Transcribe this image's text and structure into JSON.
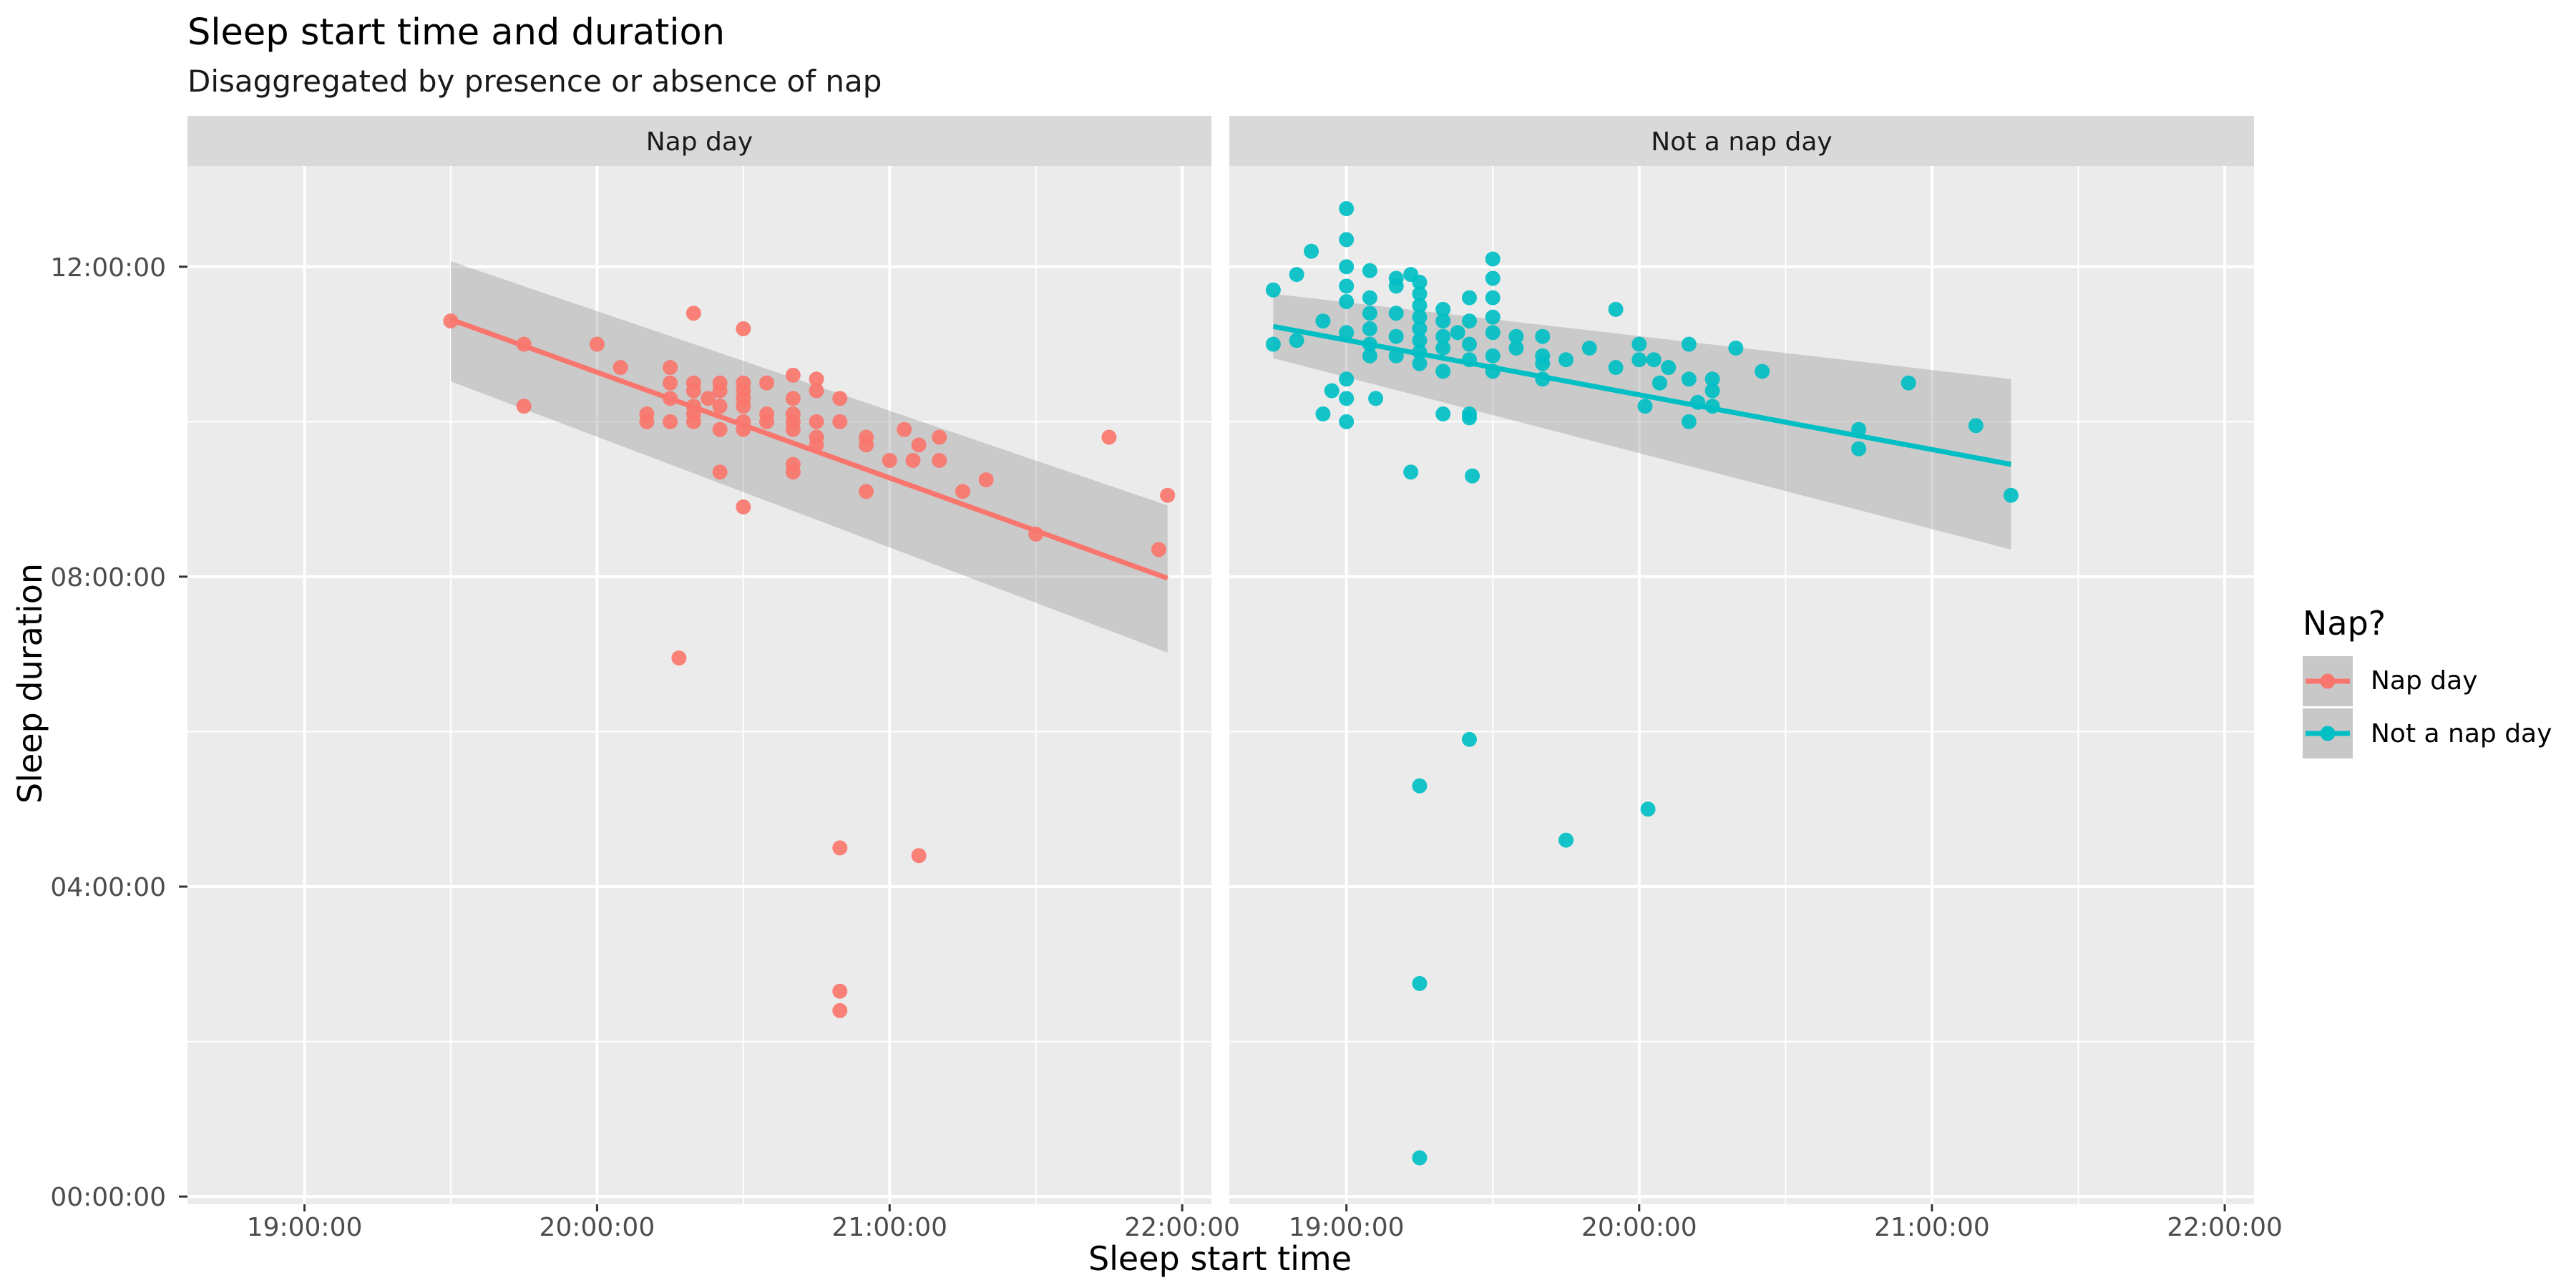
{
  "chart_data": {
    "type": "scatter",
    "title": "Sleep start time and duration",
    "subtitle": "Disaggregated by presence or absence of nap",
    "xlabel": "Sleep start time",
    "ylabel": "Sleep duration",
    "x_ticks": [
      "19:00:00",
      "20:00:00",
      "21:00:00",
      "22:00:00"
    ],
    "y_ticks": [
      "00:00:00",
      "04:00:00",
      "08:00:00",
      "12:00:00"
    ],
    "xlim_hours": [
      18.6,
      22.1
    ],
    "ylim_hours": [
      -0.1,
      13.3
    ],
    "grid": true,
    "legend": {
      "title": "Nap?",
      "position": "right",
      "items": [
        {
          "label": "Nap day",
          "color": "#F8766D"
        },
        {
          "label": "Not a nap day",
          "color": "#00BFC4"
        }
      ]
    },
    "panels": [
      {
        "strip": "Nap day",
        "color": "#F8766D",
        "fit": {
          "x": [
            19.5,
            21.95
          ],
          "y": [
            11.32,
            7.98
          ],
          "ci_lower": [
            10.52,
            7.02
          ],
          "ci_upper": [
            12.07,
            8.92
          ]
        },
        "points": [
          [
            19.5,
            11.3
          ],
          [
            19.75,
            11.0
          ],
          [
            19.75,
            10.2
          ],
          [
            20.0,
            11.0
          ],
          [
            20.08,
            10.7
          ],
          [
            20.17,
            10.1
          ],
          [
            20.17,
            10.0
          ],
          [
            20.25,
            10.7
          ],
          [
            20.25,
            10.5
          ],
          [
            20.25,
            10.3
          ],
          [
            20.25,
            10.0
          ],
          [
            20.28,
            6.95
          ],
          [
            20.33,
            11.4
          ],
          [
            20.33,
            10.5
          ],
          [
            20.33,
            10.4
          ],
          [
            20.33,
            10.2
          ],
          [
            20.33,
            10.1
          ],
          [
            20.33,
            10.0
          ],
          [
            20.38,
            10.3
          ],
          [
            20.42,
            10.5
          ],
          [
            20.42,
            10.4
          ],
          [
            20.42,
            10.2
          ],
          [
            20.42,
            9.9
          ],
          [
            20.42,
            9.35
          ],
          [
            20.5,
            11.2
          ],
          [
            20.5,
            10.5
          ],
          [
            20.5,
            10.4
          ],
          [
            20.5,
            10.3
          ],
          [
            20.5,
            10.2
          ],
          [
            20.5,
            10.0
          ],
          [
            20.5,
            9.9
          ],
          [
            20.5,
            8.9
          ],
          [
            20.58,
            10.5
          ],
          [
            20.58,
            10.1
          ],
          [
            20.58,
            10.0
          ],
          [
            20.67,
            10.6
          ],
          [
            20.67,
            10.3
          ],
          [
            20.67,
            10.1
          ],
          [
            20.67,
            10.0
          ],
          [
            20.67,
            9.9
          ],
          [
            20.67,
            9.45
          ],
          [
            20.67,
            9.35
          ],
          [
            20.75,
            10.55
          ],
          [
            20.75,
            10.4
          ],
          [
            20.75,
            10.0
          ],
          [
            20.75,
            9.8
          ],
          [
            20.75,
            9.7
          ],
          [
            20.83,
            10.3
          ],
          [
            20.83,
            10.0
          ],
          [
            20.83,
            4.5
          ],
          [
            20.83,
            2.65
          ],
          [
            20.83,
            2.4
          ],
          [
            20.92,
            9.8
          ],
          [
            20.92,
            9.7
          ],
          [
            20.92,
            9.1
          ],
          [
            21.0,
            9.5
          ],
          [
            21.05,
            9.9
          ],
          [
            21.08,
            9.5
          ],
          [
            21.1,
            9.7
          ],
          [
            21.1,
            4.4
          ],
          [
            21.17,
            9.8
          ],
          [
            21.17,
            9.5
          ],
          [
            21.25,
            9.1
          ],
          [
            21.33,
            9.25
          ],
          [
            21.5,
            8.55
          ],
          [
            21.75,
            9.8
          ],
          [
            21.92,
            8.35
          ],
          [
            21.95,
            9.05
          ]
        ]
      },
      {
        "strip": "Not a nap day",
        "color": "#00BFC4",
        "fit": {
          "x": [
            18.75,
            21.27
          ],
          "y": [
            11.23,
            9.45
          ],
          "ci_lower": [
            10.82,
            8.35
          ],
          "ci_upper": [
            11.65,
            10.55
          ]
        },
        "points": [
          [
            18.75,
            11.7
          ],
          [
            18.75,
            11.0
          ],
          [
            18.83,
            11.9
          ],
          [
            18.83,
            11.05
          ],
          [
            18.88,
            12.2
          ],
          [
            18.92,
            11.3
          ],
          [
            18.92,
            10.1
          ],
          [
            18.95,
            10.4
          ],
          [
            19.0,
            12.75
          ],
          [
            19.0,
            12.35
          ],
          [
            19.0,
            12.0
          ],
          [
            19.0,
            11.75
          ],
          [
            19.0,
            11.55
          ],
          [
            19.0,
            11.15
          ],
          [
            19.0,
            10.55
          ],
          [
            19.0,
            10.3
          ],
          [
            19.0,
            10.0
          ],
          [
            19.08,
            11.95
          ],
          [
            19.08,
            11.6
          ],
          [
            19.08,
            11.4
          ],
          [
            19.08,
            11.2
          ],
          [
            19.08,
            11.0
          ],
          [
            19.08,
            10.85
          ],
          [
            19.1,
            10.3
          ],
          [
            19.17,
            11.85
          ],
          [
            19.17,
            11.75
          ],
          [
            19.17,
            11.4
          ],
          [
            19.17,
            11.1
          ],
          [
            19.17,
            10.85
          ],
          [
            19.22,
            11.9
          ],
          [
            19.22,
            9.35
          ],
          [
            19.25,
            11.8
          ],
          [
            19.25,
            11.65
          ],
          [
            19.25,
            11.5
          ],
          [
            19.25,
            11.35
          ],
          [
            19.25,
            11.2
          ],
          [
            19.25,
            11.05
          ],
          [
            19.25,
            10.9
          ],
          [
            19.25,
            10.75
          ],
          [
            19.25,
            5.3
          ],
          [
            19.25,
            2.75
          ],
          [
            19.25,
            0.5
          ],
          [
            19.33,
            11.45
          ],
          [
            19.33,
            11.3
          ],
          [
            19.33,
            11.1
          ],
          [
            19.33,
            10.95
          ],
          [
            19.33,
            10.1
          ],
          [
            19.33,
            10.65
          ],
          [
            19.38,
            11.15
          ],
          [
            19.42,
            11.6
          ],
          [
            19.42,
            11.3
          ],
          [
            19.42,
            11.0
          ],
          [
            19.42,
            10.8
          ],
          [
            19.42,
            10.1
          ],
          [
            19.42,
            10.05
          ],
          [
            19.43,
            9.3
          ],
          [
            19.42,
            5.9
          ],
          [
            19.5,
            12.1
          ],
          [
            19.5,
            11.85
          ],
          [
            19.5,
            11.6
          ],
          [
            19.5,
            11.35
          ],
          [
            19.5,
            11.15
          ],
          [
            19.5,
            10.85
          ],
          [
            19.5,
            10.65
          ],
          [
            19.58,
            11.1
          ],
          [
            19.58,
            10.95
          ],
          [
            19.67,
            11.1
          ],
          [
            19.67,
            10.85
          ],
          [
            19.67,
            10.75
          ],
          [
            19.67,
            10.55
          ],
          [
            19.75,
            10.8
          ],
          [
            19.75,
            4.6
          ],
          [
            19.83,
            10.95
          ],
          [
            19.92,
            11.45
          ],
          [
            19.92,
            10.7
          ],
          [
            20.0,
            11.0
          ],
          [
            20.0,
            10.8
          ],
          [
            20.02,
            10.2
          ],
          [
            20.03,
            5.0
          ],
          [
            20.05,
            10.8
          ],
          [
            20.07,
            10.5
          ],
          [
            20.1,
            10.7
          ],
          [
            20.17,
            11.0
          ],
          [
            20.17,
            10.55
          ],
          [
            20.17,
            10.0
          ],
          [
            20.2,
            10.25
          ],
          [
            20.25,
            10.55
          ],
          [
            20.25,
            10.4
          ],
          [
            20.25,
            10.2
          ],
          [
            20.33,
            10.95
          ],
          [
            20.42,
            10.65
          ],
          [
            20.75,
            9.9
          ],
          [
            20.75,
            9.65
          ],
          [
            20.92,
            10.5
          ],
          [
            21.15,
            9.95
          ],
          [
            21.27,
            9.05
          ]
        ]
      }
    ]
  }
}
